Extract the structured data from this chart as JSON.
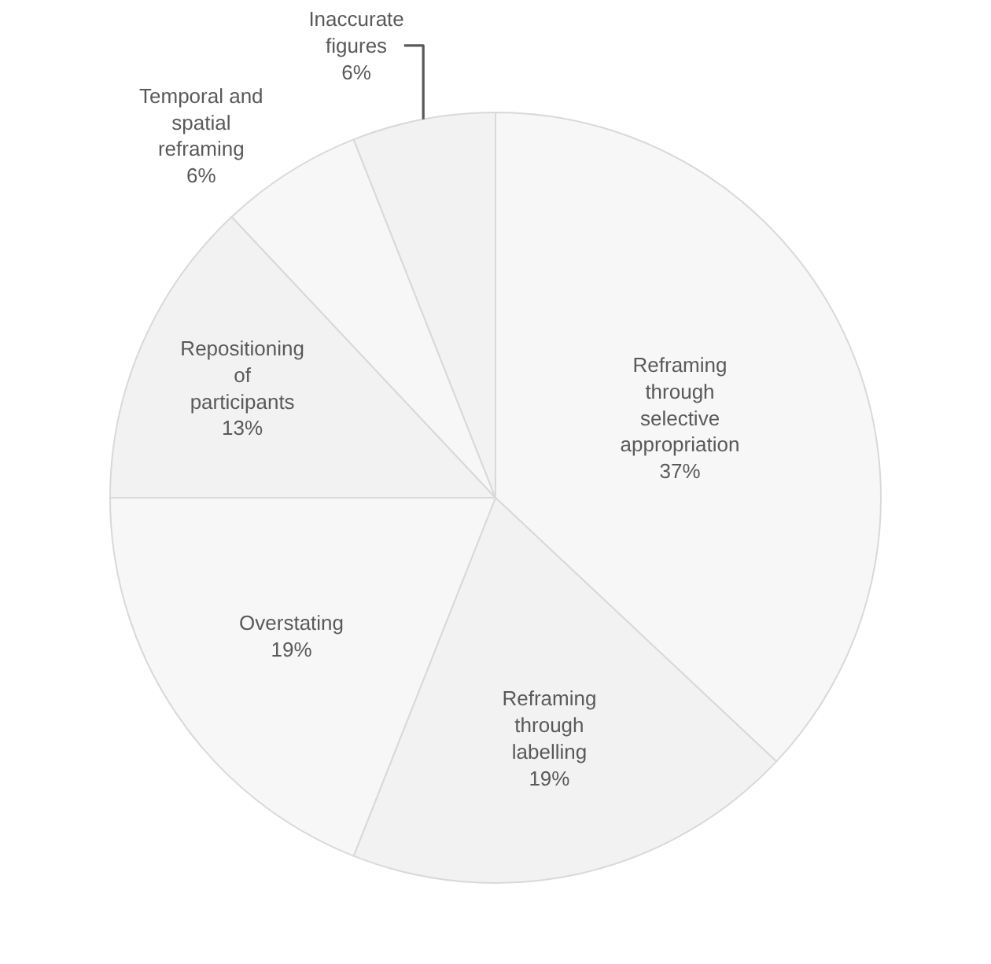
{
  "chart_data": {
    "type": "pie",
    "categories": [
      "Reframing through selective appropriation",
      "Reframing through labelling",
      "Overstating",
      "Repositioning of participants",
      "Temporal and spatial reframing",
      "Inaccurate figures"
    ],
    "values": [
      37,
      19,
      19,
      13,
      6,
      6
    ],
    "colors": [
      "#f7f7f7",
      "#f2f2f2",
      "#f7f7f7",
      "#f2f2f2",
      "#f7f7f7",
      "#f2f2f2"
    ],
    "value_labels": [
      "37%",
      "19%",
      "19%",
      "13%",
      "6%",
      "6%"
    ],
    "legend": false
  }
}
